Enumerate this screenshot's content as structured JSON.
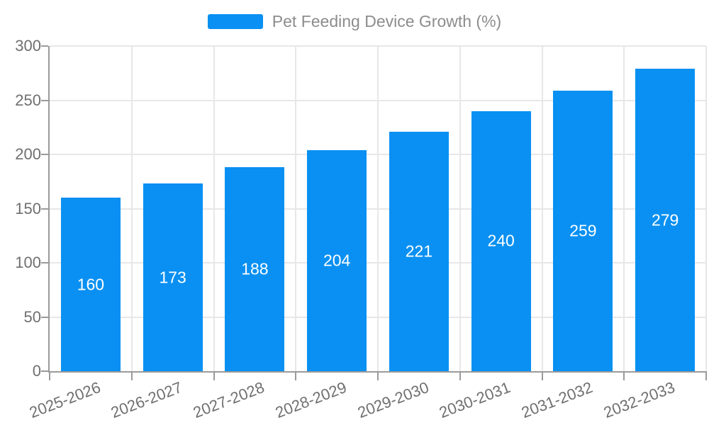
{
  "app": {
    "background_color": "#ffffff"
  },
  "legend": {
    "label": "Pet Feeding Device Growth (%)",
    "swatch_color": "#0990f2"
  },
  "chart_data": {
    "type": "bar",
    "title": "",
    "xlabel": "",
    "ylabel": "",
    "categories": [
      "2025-2026",
      "2026-2027",
      "2027-2028",
      "2028-2029",
      "2029-2030",
      "2030-2031",
      "2031-2032",
      "2032-2033"
    ],
    "series_name": "Pet Feeding Device Growth (%)",
    "values": [
      160,
      173,
      188,
      204,
      221,
      240,
      259,
      279
    ],
    "ylim": [
      0,
      300
    ],
    "yticks": [
      0,
      50,
      100,
      150,
      200,
      250,
      300
    ],
    "grid": true,
    "legend_position": "top-center",
    "bar_color": "#0990f2",
    "bar_label_color": "#ffffff",
    "axis_color": "#9a9a9a",
    "grid_color": "#e7e7e7",
    "tick_label_color": "#6f6f6f",
    "legend_text_color": "#8c8c8c",
    "x_label_rotation_deg": -21
  }
}
